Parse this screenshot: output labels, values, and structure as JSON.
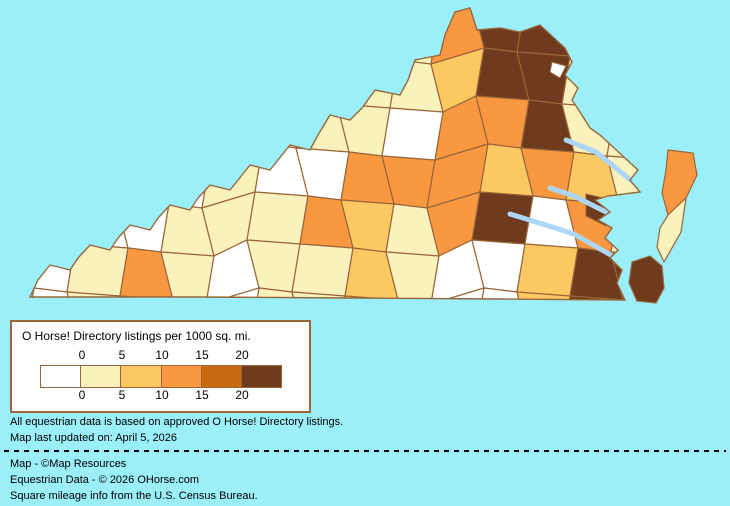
{
  "map": {
    "background_color": "#9AEFF9",
    "river_color": "#ABD6F5",
    "border_color": "#99663A",
    "color_classes": {
      "W": "#FFFFFF",
      "C": "#FAF1BD",
      "Y": "#FDC862",
      "O": "#F99840",
      "D": "#C96A10",
      "B": "#6E3B1E"
    },
    "grid": [
      "CCCCCCCCCOBBCC",
      "CCCCCCCCCYBBCC",
      "CCCCWCCCWOOBCC",
      "CCCWCWWOOOYOYC",
      "WWWCCCOYCOBWOC",
      "WCOCWCCYCWWYBB",
      "WCOCWCCYCWWYBB"
    ],
    "features": {
      "arlington_class": "W",
      "gloucester_class": "B",
      "accomack_class": "O",
      "northampton_class": "C",
      "virginia_beach_class": "B"
    }
  },
  "legend": {
    "title": "O Horse! Directory listings per 1000 sq. mi.",
    "ticks": [
      "0",
      "5",
      "10",
      "15",
      "20"
    ],
    "colors": [
      "#FFFFFF",
      "#FAF1BD",
      "#FDC862",
      "#F99840",
      "#C96A10",
      "#6E3B1E"
    ]
  },
  "notes": {
    "line1": "All equestrian data is based on approved O Horse! Directory listings.",
    "line2": "Map last updated on: April 5, 2026"
  },
  "credits": {
    "line1": "Map - ©Map Resources",
    "line2": "Equestrian Data - © 2026 OHorse.com",
    "line3": "Square mileage info from the U.S. Census Bureau."
  },
  "chart_data": {
    "type": "heatmap",
    "title": "O Horse! Directory listings per 1000 sq. mi.",
    "region": "Virginia counties",
    "scale_ticks": [
      0,
      5,
      10,
      15,
      20
    ],
    "scale_colors": [
      "#FFFFFF",
      "#FAF1BD",
      "#FDC862",
      "#F99840",
      "#C96A10",
      "#6E3B1E"
    ],
    "legend_position": "bottom-left"
  }
}
